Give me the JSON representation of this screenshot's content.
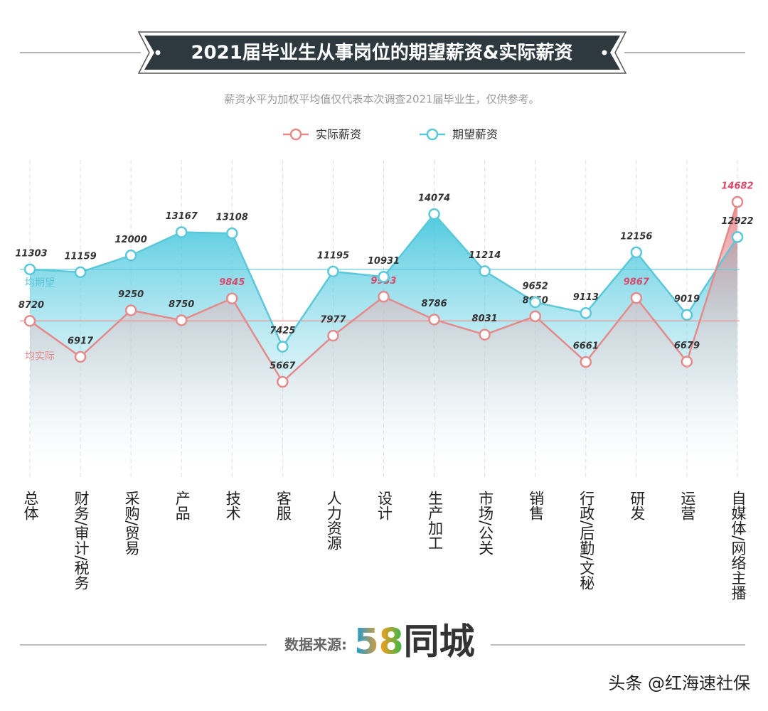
{
  "chart_data": {
    "type": "line",
    "title": "2021届毕业生从事岗位的期望薪资&实际薪资",
    "subtitle": "薪资水平为加权平均值仅代表本次调查2021届毕业生，仅供参考。",
    "categories": [
      "总体",
      "财务/审计/税务",
      "采购/贸易",
      "产品",
      "技术",
      "客服",
      "人力资源",
      "设计",
      "生产加工",
      "市场/公关",
      "销售",
      "行政/后勤/文秘",
      "研发",
      "运营",
      "自媒体/网络主播"
    ],
    "series": [
      {
        "name": "实际薪资",
        "color": "#e58a8a",
        "highlight_color": "#d9486a",
        "highlight": [
          4,
          7,
          12,
          14
        ],
        "values": [
          8720,
          6917,
          9250,
          8750,
          9845,
          5667,
          7977,
          9933,
          8786,
          8031,
          8950,
          6661,
          9867,
          6679,
          14682
        ]
      },
      {
        "name": "期望薪资",
        "color": "#5ac8d8",
        "values": [
          11303,
          11159,
          12000,
          13167,
          13108,
          7425,
          11195,
          10931,
          14074,
          11214,
          9652,
          9113,
          12156,
          9019,
          12922
        ]
      }
    ],
    "reference_lines": [
      {
        "label": "均期望",
        "value": 11303,
        "color": "#5ac8d8"
      },
      {
        "label": "均实际",
        "value": 8720,
        "color": "#e58a8a"
      }
    ],
    "source_label": "数据来源:",
    "source_logo": "58同城",
    "watermark": "头条 @红海速社保"
  }
}
